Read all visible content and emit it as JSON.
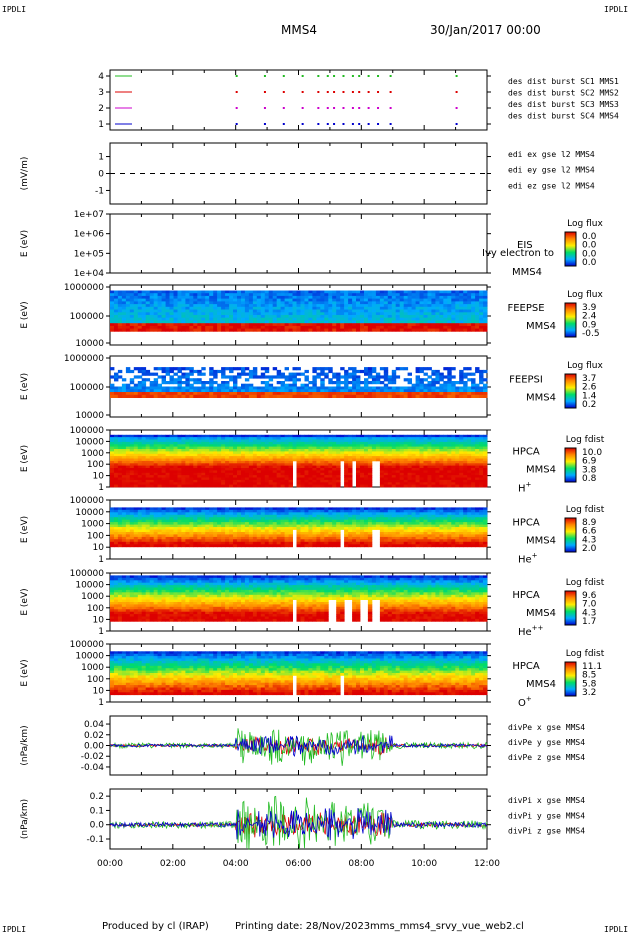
{
  "header": {
    "corner_tag": "IPDLI",
    "spacecraft": "MMS4",
    "date_time": "30/Jan/2017 00:00"
  },
  "footer": {
    "produced_by": "Produced by cl (IRAP)",
    "printing_date": "Printing date: 28/Nov/2023",
    "file_name": "mms_mms4_srvy_vue_web2.cl"
  },
  "colors": {
    "red": "#dd0000",
    "green": "#22bb22",
    "blue": "#0000cc",
    "magenta": "#cc00cc",
    "darkred": "#aa0000"
  },
  "x_ticks": [
    "00:00",
    "02:00",
    "04:00",
    "06:00",
    "08:00",
    "10:00",
    "12:00"
  ],
  "chart_data": [
    {
      "type": "scatter",
      "panel": "burst",
      "y_ticks": [
        "4",
        "3",
        "2",
        "1"
      ],
      "ylim": [
        0.5,
        4.5
      ],
      "legend": [
        "des dist burst SC1 MMS1",
        "des dist burst SC2 MMS2",
        "des dist burst SC3 MMS3",
        "des dist burst SC4 MMS4"
      ],
      "series": [
        {
          "level": 4,
          "color": "#22bb22",
          "x_hours": [
            0.6,
            4.0,
            4.9,
            5.5,
            6.1,
            6.6,
            6.9,
            7.1,
            7.4,
            7.7,
            7.9,
            8.2,
            8.5,
            8.9,
            11.0
          ]
        },
        {
          "level": 3,
          "color": "#dd0000",
          "x_hours": [
            0.6,
            4.0,
            4.9,
            5.5,
            6.1,
            6.6,
            6.9,
            7.1,
            7.4,
            7.7,
            7.9,
            8.2,
            8.5,
            8.9,
            11.0
          ]
        },
        {
          "level": 2,
          "color": "#cc00cc",
          "x_hours": [
            0.6,
            4.0,
            4.9,
            5.5,
            6.1,
            6.6,
            6.9,
            7.1,
            7.4,
            7.7,
            7.9,
            8.2,
            8.5,
            8.9,
            11.0
          ]
        },
        {
          "level": 1,
          "color": "#0000cc",
          "x_hours": [
            0.6,
            4.0,
            4.9,
            5.5,
            6.1,
            6.6,
            6.9,
            7.1,
            7.4,
            7.7,
            7.9,
            8.2,
            8.5,
            8.9,
            11.0
          ]
        }
      ]
    },
    {
      "type": "line",
      "panel": "edi",
      "ylabel": "(mV/m)",
      "y_ticks": [
        "1",
        "0",
        "-1"
      ],
      "ylim": [
        -1.8,
        1.8
      ],
      "legend": [
        "edi ex gse l2 MMS4",
        "edi ey gse l2 MMS4",
        "edi ez gse l2 MMS4"
      ],
      "reference_line": 0
    },
    {
      "type": "heatmap",
      "panel": "eis",
      "ylabel": "E (eV)",
      "y_ticks": [
        "1e+07",
        "1e+06",
        "1e+05",
        "1e+04"
      ],
      "instrument": [
        "EIS",
        "MMS4"
      ],
      "overlay_text": "Ivy electron to",
      "colorbar_title": "Log flux",
      "colorbar_ticks": [
        "0.0",
        "0.0",
        "0.0",
        "0.0"
      ]
    },
    {
      "type": "heatmap",
      "panel": "feepse",
      "ylabel": "E (eV)",
      "y_ticks": [
        "1000000",
        "100000",
        "10000"
      ],
      "instrument": [
        "FEEPSE",
        "MMS4"
      ],
      "colorbar_title": "Log flux",
      "colorbar_ticks": [
        "3.9",
        "2.4",
        "0.9",
        "-0.5"
      ]
    },
    {
      "type": "heatmap",
      "panel": "feepsi",
      "ylabel": "E (eV)",
      "y_ticks": [
        "1000000",
        "100000",
        "10000"
      ],
      "instrument": [
        "FEEPSI",
        "MMS4"
      ],
      "colorbar_title": "Log flux",
      "colorbar_ticks": [
        "3.7",
        "2.6",
        "1.4",
        "0.2"
      ]
    },
    {
      "type": "heatmap",
      "panel": "hpca_h",
      "ylabel": "E (eV)",
      "y_ticks": [
        "100000",
        "10000",
        "1000",
        "100",
        "10",
        "1"
      ],
      "instrument": [
        "HPCA",
        "MMS4"
      ],
      "species": "H",
      "species_charge": "+",
      "colorbar_title": "Log fdist",
      "colorbar_ticks": [
        "10.0",
        "6.9",
        "3.8",
        "0.8"
      ]
    },
    {
      "type": "heatmap",
      "panel": "hpca_he",
      "ylabel": "E (eV)",
      "y_ticks": [
        "100000",
        "10000",
        "1000",
        "100",
        "10",
        "1"
      ],
      "instrument": [
        "HPCA",
        "MMS4"
      ],
      "species": "He",
      "species_charge": "+",
      "colorbar_title": "Log fdist",
      "colorbar_ticks": [
        "8.9",
        "6.6",
        "4.3",
        "2.0"
      ]
    },
    {
      "type": "heatmap",
      "panel": "hpca_hepp",
      "ylabel": "E (eV)",
      "y_ticks": [
        "100000",
        "10000",
        "1000",
        "100",
        "10",
        "1"
      ],
      "instrument": [
        "HPCA",
        "MMS4"
      ],
      "species": "He",
      "species_charge": "++",
      "colorbar_title": "Log fdist",
      "colorbar_ticks": [
        "9.6",
        "7.0",
        "4.3",
        "1.7"
      ]
    },
    {
      "type": "heatmap",
      "panel": "hpca_o",
      "ylabel": "E (eV)",
      "y_ticks": [
        "100000",
        "10000",
        "1000",
        "100",
        "10",
        "1"
      ],
      "instrument": [
        "HPCA",
        "MMS4"
      ],
      "species": "O",
      "species_charge": "+",
      "colorbar_title": "Log fdist",
      "colorbar_ticks": [
        "11.1",
        "8.5",
        "5.8",
        "3.2"
      ]
    },
    {
      "type": "line",
      "panel": "divpe",
      "ylabel": "(nPa/km)",
      "y_ticks": [
        "0.04",
        "0.02",
        "0.00",
        "-0.02",
        "-0.04"
      ],
      "ylim": [
        -0.055,
        0.055
      ],
      "legend": [
        "divPe x gse MMS4",
        "divPe y gse MMS4",
        "divPe z gse MMS4"
      ],
      "series": [
        {
          "color": "#dd0000",
          "amp": 0.018
        },
        {
          "color": "#22bb22",
          "amp": 0.04
        },
        {
          "color": "#0000cc",
          "amp": 0.02
        }
      ]
    },
    {
      "type": "line",
      "panel": "divpi",
      "ylabel": "(nPa/km)",
      "y_ticks": [
        "0.2",
        "0.1",
        "0.0",
        "-0.1"
      ],
      "ylim": [
        -0.17,
        0.25
      ],
      "legend": [
        "divPi x gse MMS4",
        "divPi y gse MMS4",
        "divPi z gse MMS4"
      ],
      "series": [
        {
          "color": "#dd0000",
          "amp": 0.09
        },
        {
          "color": "#22bb22",
          "amp": 0.2
        },
        {
          "color": "#0000cc",
          "amp": 0.12
        }
      ]
    }
  ]
}
